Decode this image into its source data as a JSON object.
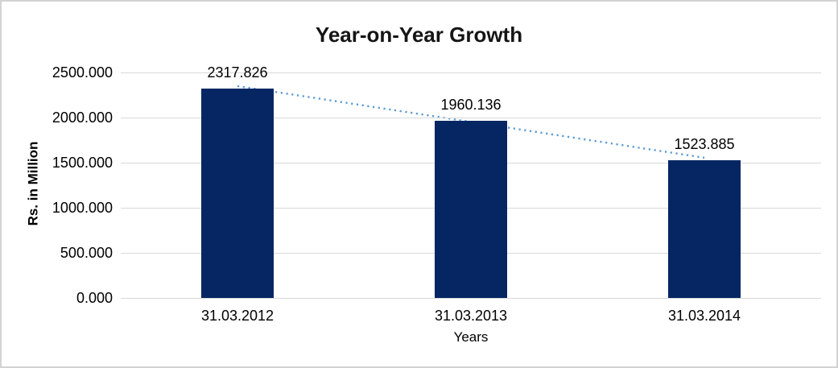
{
  "chart_data": {
    "type": "bar",
    "title": "Year-on-Year Growth",
    "categories": [
      "31.03.2012",
      "31.03.2013",
      "31.03.2014"
    ],
    "values": [
      2317.826,
      1960.136,
      1523.885
    ],
    "data_labels": [
      "2317.826",
      "1960.136",
      "1523.885"
    ],
    "series_name": "",
    "xlabel": "Years",
    "ylabel": "Rs. in Million",
    "ylim": [
      0,
      2500
    ],
    "ytick_step": 500,
    "ytick_labels": [
      "0.000",
      "500.000",
      "1000.000",
      "1500.000",
      "2000.000",
      "2500.000"
    ],
    "grid": true,
    "legend": "none",
    "trendline": {
      "type": "linear",
      "style": "dotted"
    },
    "colors": {
      "bar": "#052663",
      "trendline": "#5b9bd5",
      "gridline": "#d9d9d9",
      "text": "#000000",
      "frame_border": "#d3d3d3"
    }
  }
}
